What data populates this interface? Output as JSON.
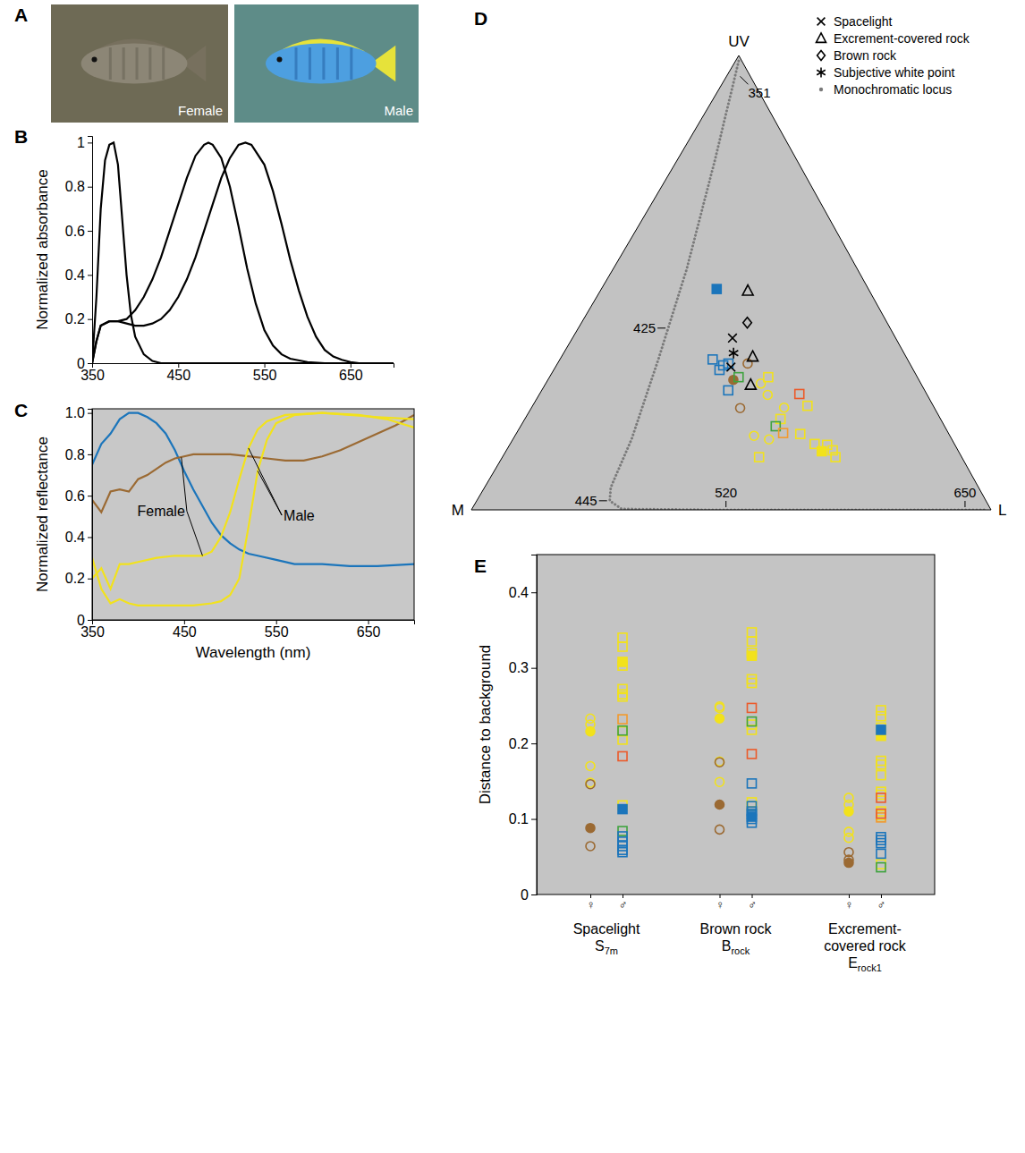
{
  "chart_data": [
    {
      "panel": "A",
      "type": "image",
      "images": [
        {
          "label": "Female"
        },
        {
          "label": "Male"
        }
      ]
    },
    {
      "panel": "B",
      "type": "line",
      "ylabel": "Normalized absorbance",
      "xlim": [
        350,
        700
      ],
      "ylim": [
        0,
        1.03
      ],
      "xticks": [
        350,
        450,
        550,
        650
      ],
      "yticks": [
        0,
        0.2,
        0.4,
        0.6,
        0.8,
        1
      ],
      "series": [
        {
          "color": "#000000",
          "x": [
            350,
            355,
            360,
            365,
            370,
            375,
            380,
            385,
            390,
            395,
            400,
            410,
            420,
            430,
            450,
            700
          ],
          "values": [
            0,
            0.3,
            0.7,
            0.92,
            0.99,
            1,
            0.9,
            0.65,
            0.4,
            0.22,
            0.12,
            0.04,
            0.01,
            0,
            0,
            0
          ]
        },
        {
          "color": "#000000",
          "x": [
            350,
            355,
            360,
            370,
            380,
            390,
            400,
            410,
            420,
            430,
            440,
            450,
            460,
            470,
            480,
            485,
            490,
            500,
            510,
            520,
            530,
            540,
            550,
            560,
            570,
            580,
            600,
            620,
            700
          ],
          "values": [
            0,
            0.1,
            0.17,
            0.19,
            0.19,
            0.2,
            0.24,
            0.3,
            0.38,
            0.48,
            0.6,
            0.72,
            0.84,
            0.94,
            0.99,
            1,
            0.99,
            0.93,
            0.8,
            0.62,
            0.43,
            0.27,
            0.15,
            0.08,
            0.04,
            0.02,
            0.005,
            0,
            0
          ]
        },
        {
          "color": "#000000",
          "x": [
            350,
            355,
            360,
            370,
            380,
            390,
            400,
            410,
            420,
            430,
            440,
            450,
            460,
            470,
            480,
            490,
            500,
            510,
            520,
            528,
            535,
            550,
            560,
            570,
            580,
            590,
            600,
            610,
            620,
            630,
            640,
            650,
            660,
            700
          ],
          "values": [
            0,
            0.1,
            0.17,
            0.19,
            0.19,
            0.18,
            0.17,
            0.17,
            0.18,
            0.2,
            0.24,
            0.3,
            0.38,
            0.48,
            0.6,
            0.72,
            0.84,
            0.93,
            0.99,
            1,
            0.99,
            0.9,
            0.78,
            0.63,
            0.47,
            0.33,
            0.21,
            0.12,
            0.06,
            0.03,
            0.015,
            0.005,
            0,
            0
          ]
        }
      ]
    },
    {
      "panel": "C",
      "type": "line",
      "xlabel": "Wavelength (nm)",
      "ylabel": "Normalized reflectance",
      "xlim": [
        350,
        700
      ],
      "ylim": [
        0,
        1.02
      ],
      "xticks": [
        350,
        450,
        550,
        650
      ],
      "yticks": [
        0,
        0.2,
        0.4,
        0.6,
        0.8,
        {
          "value": 1,
          "label": "1.0"
        }
      ],
      "series": [
        {
          "color": "#1b75bb",
          "x": [
            350,
            360,
            370,
            380,
            390,
            400,
            410,
            420,
            430,
            440,
            450,
            460,
            470,
            480,
            490,
            500,
            510,
            520,
            530,
            550,
            570,
            600,
            630,
            660,
            700
          ],
          "values": [
            0.75,
            0.85,
            0.9,
            0.97,
            1.0,
            1.0,
            0.98,
            0.95,
            0.9,
            0.82,
            0.72,
            0.63,
            0.55,
            0.47,
            0.41,
            0.37,
            0.34,
            0.32,
            0.31,
            0.29,
            0.27,
            0.27,
            0.26,
            0.26,
            0.27
          ]
        },
        {
          "color": "#9b6a33",
          "x": [
            350,
            360,
            370,
            380,
            390,
            400,
            410,
            420,
            430,
            440,
            450,
            460,
            480,
            500,
            520,
            540,
            560,
            580,
            600,
            620,
            640,
            660,
            680,
            700
          ],
          "values": [
            0.58,
            0.52,
            0.62,
            0.63,
            0.62,
            0.68,
            0.7,
            0.73,
            0.76,
            0.78,
            0.79,
            0.8,
            0.8,
            0.8,
            0.79,
            0.78,
            0.77,
            0.77,
            0.79,
            0.82,
            0.86,
            0.9,
            0.94,
            0.99
          ]
        },
        {
          "color": "#f2e21c",
          "x": [
            350,
            360,
            370,
            380,
            390,
            400,
            420,
            440,
            460,
            470,
            480,
            490,
            500,
            510,
            520,
            530,
            540,
            560,
            600,
            640,
            670,
            700
          ],
          "values": [
            0.2,
            0.25,
            0.15,
            0.27,
            0.27,
            0.28,
            0.3,
            0.31,
            0.31,
            0.31,
            0.33,
            0.4,
            0.52,
            0.68,
            0.83,
            0.92,
            0.96,
            0.99,
            1.0,
            0.99,
            0.97,
            0.93
          ]
        },
        {
          "color": "#f2e21c",
          "x": [
            350,
            360,
            370,
            380,
            390,
            400,
            420,
            440,
            460,
            480,
            490,
            500,
            510,
            520,
            530,
            540,
            550,
            570,
            600,
            630,
            660,
            700
          ],
          "values": [
            0.3,
            0.15,
            0.08,
            0.1,
            0.08,
            0.07,
            0.07,
            0.07,
            0.07,
            0.08,
            0.09,
            0.12,
            0.2,
            0.45,
            0.72,
            0.87,
            0.95,
            0.99,
            1.0,
            0.99,
            0.98,
            0.97
          ]
        }
      ],
      "annotations": [
        {
          "text": "Female",
          "x": 425,
          "y": 0.52,
          "targets": [
            [
              447,
              0.785
            ],
            [
              470,
              0.31
            ]
          ]
        },
        {
          "text": "Male",
          "x": 575,
          "y": 0.5,
          "targets": [
            [
              520,
              0.83
            ],
            [
              530,
              0.72
            ]
          ]
        }
      ]
    },
    {
      "panel": "D",
      "type": "ternary",
      "vertices": [
        "UV",
        "M",
        "L"
      ],
      "legend": "top-right",
      "reference_points": [
        {
          "name": "Spacelight",
          "marker": "x",
          "color": "#000000",
          "uv": [
            0.378,
            0.314
          ],
          "m": [
            0.314,
            0.348
          ],
          "l": [
            0.308,
            0.338
          ]
        },
        {
          "name": "Excrement-covered rock",
          "marker": "triangle",
          "color": "#000000",
          "uv": [
            0.482,
            0.337,
            0.275
          ],
          "m": [
            0.234,
            0.295,
            0.329
          ],
          "l": [
            0.284,
            0.368,
            0.396
          ]
        },
        {
          "name": "Brown rock",
          "marker": "diamond",
          "color": "#000000",
          "uv": [
            0.412
          ],
          "m": [
            0.269
          ],
          "l": [
            0.319
          ]
        },
        {
          "name": "Subjective white point",
          "marker": "asterisk",
          "color": "#000000",
          "uv": [
            0.345
          ],
          "m": [
            0.328
          ],
          "l": [
            0.327
          ]
        }
      ],
      "locus": {
        "name": "Monochromatic locus",
        "marker": "dot",
        "color": "#7a7a7a",
        "uv": [
          0.988,
          0.765,
          0.529,
          0.333,
          0.157,
          0.049,
          0.02,
          0.002,
          0,
          0,
          0
        ],
        "m": [
          0.006,
          0.161,
          0.329,
          0.478,
          0.615,
          0.708,
          0.724,
          0.71,
          0.543,
          0.209,
          0.008
        ],
        "l": [
          0.006,
          0.074,
          0.142,
          0.189,
          0.228,
          0.243,
          0.256,
          0.288,
          0.457,
          0.791,
          0.992
        ],
        "labels": [
          {
            "wavelength": 351,
            "uv": 0.96,
            "m": 0.022,
            "l": 0.018
          },
          {
            "wavelength": 425,
            "uv": 0.4,
            "m": 0.427,
            "l": 0.173
          },
          {
            "wavelength": 445,
            "uv": 0.02,
            "m": 0.724,
            "l": 0.256
          },
          {
            "wavelength": 520,
            "uv": 0,
            "m": 0.51,
            "l": 0.49
          },
          {
            "wavelength": 650,
            "uv": 0,
            "m": 0.05,
            "l": 0.95
          }
        ]
      },
      "series": [
        {
          "color": "#f2e21c",
          "marker": "square",
          "uv": [
            0.292,
            0.229,
            0.2,
            0.167,
            0.145,
            0.143,
            0.131,
            0.116,
            0.116
          ],
          "m": [
            0.287,
            0.242,
            0.308,
            0.286,
            0.269,
            0.246,
            0.241,
            0.243,
            0.39
          ],
          "l": [
            0.421,
            0.529,
            0.492,
            0.547,
            0.586,
            0.611,
            0.628,
            0.641,
            0.494
          ]
        },
        {
          "color": "#f2e21c",
          "marker": "circle",
          "uv": [
            0.278,
            0.253,
            0.225,
            0.163,
            0.155
          ],
          "m": [
            0.308,
            0.307,
            0.289,
            0.377,
            0.352
          ],
          "l": [
            0.414,
            0.44,
            0.486,
            0.46,
            0.493
          ]
        },
        {
          "color": "#f2e21c",
          "marker": "square-filled",
          "uv": [
            0.129
          ],
          "m": [
            0.263
          ],
          "l": [
            0.608
          ]
        },
        {
          "color": "#9b6a33",
          "marker": "circle",
          "uv": [
            0.322,
            0.224
          ],
          "m": [
            0.312,
            0.374
          ],
          "l": [
            0.366,
            0.402
          ]
        },
        {
          "color": "#9b6a33",
          "marker": "circle-filled",
          "uv": [
            0.286
          ],
          "m": [
            0.357
          ],
          "l": [
            0.357
          ]
        },
        {
          "color": "#1b75bb",
          "marker": "square",
          "uv": [
            0.331,
            0.308,
            0.318,
            0.322,
            0.263
          ],
          "m": [
            0.375,
            0.373,
            0.361,
            0.349,
            0.378
          ],
          "l": [
            0.294,
            0.319,
            0.321,
            0.329,
            0.359
          ]
        },
        {
          "color": "#1b75bb",
          "marker": "square-filled",
          "uv": [
            0.486
          ],
          "m": [
            0.292
          ],
          "l": [
            0.222
          ]
        },
        {
          "color": "#3fa33f",
          "marker": "square",
          "uv": [
            0.292,
            0.184
          ],
          "m": [
            0.344,
            0.325
          ],
          "l": [
            0.364,
            0.491
          ]
        },
        {
          "color": "#ec5a2a",
          "marker": "square",
          "uv": [
            0.255
          ],
          "m": [
            0.245
          ],
          "l": [
            0.5
          ]
        },
        {
          "color": "#f39a2c",
          "marker": "square",
          "uv": [
            0.169
          ],
          "m": [
            0.318
          ],
          "l": [
            0.513
          ]
        }
      ]
    },
    {
      "panel": "E",
      "type": "scatter",
      "ylabel": "Distance to background",
      "ylim": [
        0,
        0.45
      ],
      "yticks": [
        0,
        0.1,
        0.2,
        0.3,
        0.4
      ],
      "categories": [
        "♀",
        "♂",
        "♀",
        "♂",
        "♀",
        "♂"
      ],
      "groups": [
        {
          "name": "Spacelight",
          "symbol": "S",
          "subscript": "7m"
        },
        {
          "name": "Brown rock",
          "symbol": "B",
          "subscript": "rock"
        },
        {
          "name": "Excrement-covered rock",
          "symbol": "E",
          "subscript": "rock1"
        }
      ],
      "series": [
        {
          "color": "#f2e21c",
          "marker": "circle",
          "values": [
            [
              0.233,
              0.225,
              0.17,
              0.148
            ],
            [],
            [
              0.249,
              0.247,
              0.176,
              0.149
            ],
            [],
            [
              0.128,
              0.119,
              0.083,
              0.075
            ],
            []
          ]
        },
        {
          "color": "#f2e21c",
          "marker": "circle-filled",
          "values": [
            [
              0.216
            ],
            [],
            [
              0.233
            ],
            [],
            [
              0.11
            ],
            []
          ]
        },
        {
          "color": "#9b6a33",
          "marker": "circle",
          "values": [
            [
              0.146,
              0.064
            ],
            [],
            [
              0.175,
              0.086
            ],
            [],
            [
              0.056,
              0.046
            ],
            []
          ]
        },
        {
          "color": "#9b6a33",
          "marker": "circle-filled",
          "values": [
            [
              0.088
            ],
            [],
            [
              0.119
            ],
            [],
            [
              0.042
            ],
            []
          ]
        },
        {
          "color": "#f2e21c",
          "marker": "square",
          "values": [
            [],
            [
              0.34,
              0.328,
              0.303,
              0.272,
              0.265,
              0.262,
              0.216,
              0.205,
              0.118
            ],
            [],
            [
              0.347,
              0.335,
              0.32,
              0.285,
              0.28,
              0.225,
              0.218,
              0.122,
              0.117
            ],
            [],
            [
              0.244,
              0.236,
              0.221,
              0.177,
              0.172,
              0.158,
              0.136,
              0.132,
              0.11,
              0.105,
              0.04
            ]
          ]
        },
        {
          "color": "#f2e21c",
          "marker": "square-filled",
          "values": [
            [],
            [
              0.308
            ],
            [],
            [
              0.316
            ],
            [],
            [
              0.21
            ]
          ]
        },
        {
          "color": "#f39a2c",
          "marker": "square",
          "values": [
            [],
            [
              0.232
            ],
            [],
            [],
            [],
            [
              0.102
            ]
          ]
        },
        {
          "color": "#ec5a2a",
          "marker": "square",
          "values": [
            [],
            [
              0.183
            ],
            [],
            [
              0.247,
              0.186
            ],
            [],
            [
              0.128,
              0.107
            ]
          ]
        },
        {
          "color": "#3fa33f",
          "marker": "square",
          "values": [
            [],
            [
              0.217,
              0.084
            ],
            [],
            [
              0.229
            ],
            [],
            [
              0.036
            ]
          ]
        },
        {
          "color": "#1b75bb",
          "marker": "square",
          "values": [
            [],
            [
              0.077,
              0.07,
              0.064,
              0.059,
              0.056
            ],
            [],
            [
              0.147,
              0.117,
              0.11,
              0.107,
              0.1,
              0.095
            ],
            [],
            [
              0.076,
              0.072,
              0.068,
              0.054
            ]
          ]
        },
        {
          "color": "#1b75bb",
          "marker": "square-filled",
          "values": [
            [],
            [
              0.113
            ],
            [],
            [
              0.103
            ],
            [],
            [
              0.218
            ]
          ]
        }
      ]
    }
  ]
}
